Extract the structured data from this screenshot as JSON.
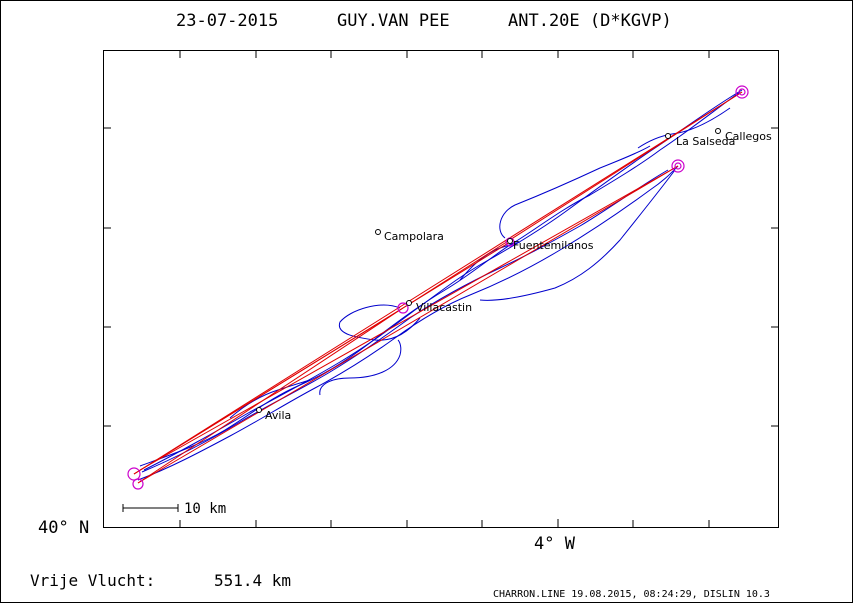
{
  "header": {
    "date": "23-07-2015",
    "pilot": "GUY.VAN PEE",
    "glider": "ANT.20E (D*KGVP)"
  },
  "axes": {
    "lat_label": "40° N",
    "lon_label": "4° W"
  },
  "scale_bar": {
    "label": "10 km"
  },
  "places": [
    {
      "name": "Campolara"
    },
    {
      "name": "La Salseda"
    },
    {
      "name": "Callegos"
    },
    {
      "name": "Fuentemilanos"
    },
    {
      "name": "Villacastin"
    },
    {
      "name": "Avila"
    }
  ],
  "footer": {
    "distance_label": "Vrije Vlucht:",
    "distance_value": "551.4 km",
    "credit": "CHARRON.LINE 19.08.2015, 08:24:29, DISLIN 10.3"
  },
  "colors": {
    "track": "#0000cc",
    "task_line": "#e00000",
    "turnpoint": "#cc00cc",
    "frame": "#000000"
  }
}
